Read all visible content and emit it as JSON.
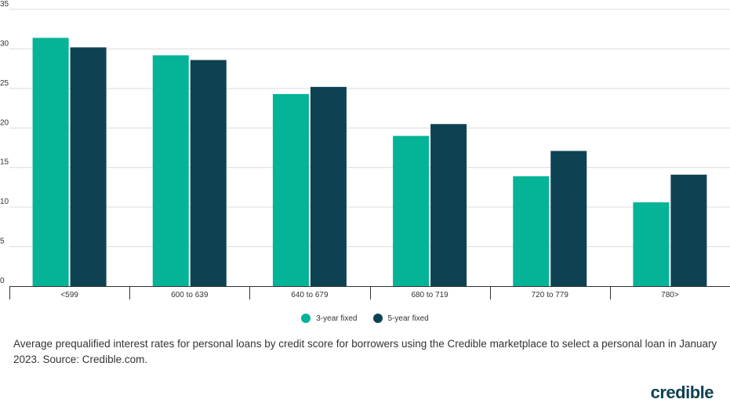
{
  "chart_data": {
    "type": "bar",
    "categories": [
      "<599",
      "600 to 639",
      "640 to 679",
      "680 to 719",
      "720 to 779",
      "780>"
    ],
    "series": [
      {
        "name": "3-year fixed",
        "color": "#05b397",
        "values": [
          31.4,
          29.2,
          24.3,
          19.0,
          13.9,
          10.6
        ]
      },
      {
        "name": "5-year fixed",
        "color": "#0e4252",
        "values": [
          30.2,
          28.6,
          25.2,
          20.5,
          17.1,
          14.1
        ]
      }
    ],
    "yticks": [
      0,
      5,
      10,
      15,
      20,
      25,
      30,
      35
    ],
    "ylim": [
      0,
      35
    ],
    "grid": true,
    "legend_position": "bottom-center",
    "title": "",
    "xlabel": "",
    "ylabel": ""
  },
  "caption": "Average prequalified interest rates for personal loans by credit score for borrowers using the Credible marketplace to select a personal loan in January 2023. Source: Credible.com.",
  "brand": {
    "name": "credible",
    "color": "#0e4252"
  }
}
